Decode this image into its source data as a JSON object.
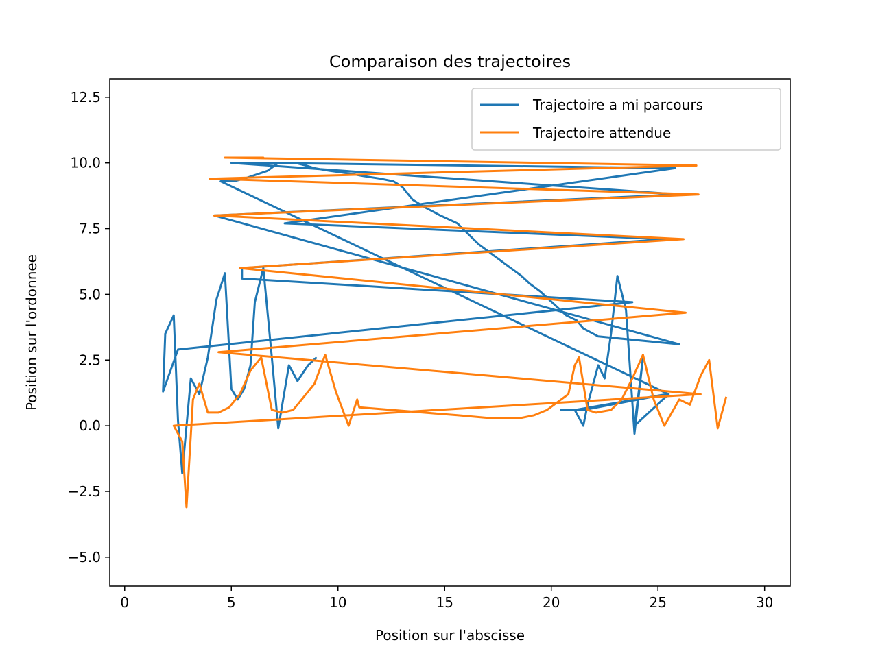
{
  "chart_data": {
    "type": "line",
    "title": "Comparaison des trajectoires",
    "xlabel": "Position sur l'abscisse",
    "ylabel": "Position sur l'ordonnee",
    "xlim": [
      -0.7,
      31.2
    ],
    "ylim": [
      -6.1,
      13.2
    ],
    "xticks": [
      0,
      5,
      10,
      15,
      20,
      25,
      30
    ],
    "yticks": [
      -5.0,
      -2.5,
      0.0,
      2.5,
      5.0,
      7.5,
      10.0,
      12.5
    ],
    "xtick_labels": [
      "0",
      "5",
      "10",
      "15",
      "20",
      "25",
      "30"
    ],
    "ytick_labels": [
      "−5.0",
      "−2.5",
      "0.0",
      "2.5",
      "5.0",
      "7.5",
      "10.0",
      "12.5"
    ],
    "grid": false,
    "legend_position": "top-right",
    "series": [
      {
        "name": "Trajectoire a mi parcours",
        "color": "#1f77b4",
        "x": [
          20.4,
          21.5,
          25.4,
          21.1,
          21.5,
          21.7,
          22.2,
          22.5,
          22.8,
          23.1,
          23.5,
          23.9,
          24.3,
          23.9,
          25.5,
          4.5,
          5.1,
          5.6,
          6.7,
          7.2,
          8.0,
          8.5,
          8.9,
          9.6,
          10.5,
          11.2,
          12.0,
          12.6,
          13.0,
          13.5,
          14.1,
          14.8,
          15.6,
          16.1,
          16.6,
          17.1,
          17.6,
          18.1,
          18.6,
          19.0,
          19.5,
          19.9,
          20.3,
          20.7,
          21.2,
          21.5,
          22.2,
          26.0,
          4.2,
          26.0,
          5.0,
          6.5,
          25.8,
          7.5,
          25.4,
          5.5,
          5.5,
          23.8,
          2.5,
          1.8,
          1.9,
          2.3,
          2.5,
          2.7,
          3.1,
          3.5,
          3.9,
          4.3,
          4.7,
          5.0,
          5.3,
          5.6,
          5.9,
          6.1,
          6.5,
          6.9,
          7.2,
          7.7,
          8.1,
          8.6,
          9.0
        ]
      },
      {
        "name": "Trajectoire attendue",
        "color": "#ff7f0e",
        "x": [
          28.2,
          27.8,
          27.4,
          27.0,
          26.5,
          26.0,
          25.3,
          24.8,
          24.3,
          23.8,
          23.3,
          22.8,
          22.1,
          21.7,
          21.3,
          21.1,
          20.8,
          20.3,
          19.8,
          19.2,
          18.6,
          17.0,
          15.6,
          11.0,
          10.9,
          10.5,
          9.9,
          9.4,
          8.9,
          8.4,
          7.9,
          7.4,
          6.9,
          6.4,
          5.9,
          5.4,
          4.9,
          4.4,
          3.9,
          3.5,
          3.2,
          2.9,
          2.7,
          2.3,
          27.0,
          4.4,
          26.3,
          5.4,
          26.2,
          4.2,
          26.9,
          4.0,
          26.8,
          4.7,
          6.5,
          5.0
        ]
      }
    ],
    "legend": {
      "entries": [
        "Trajectoire a mi parcours",
        "Trajectoire attendue"
      ]
    }
  }
}
